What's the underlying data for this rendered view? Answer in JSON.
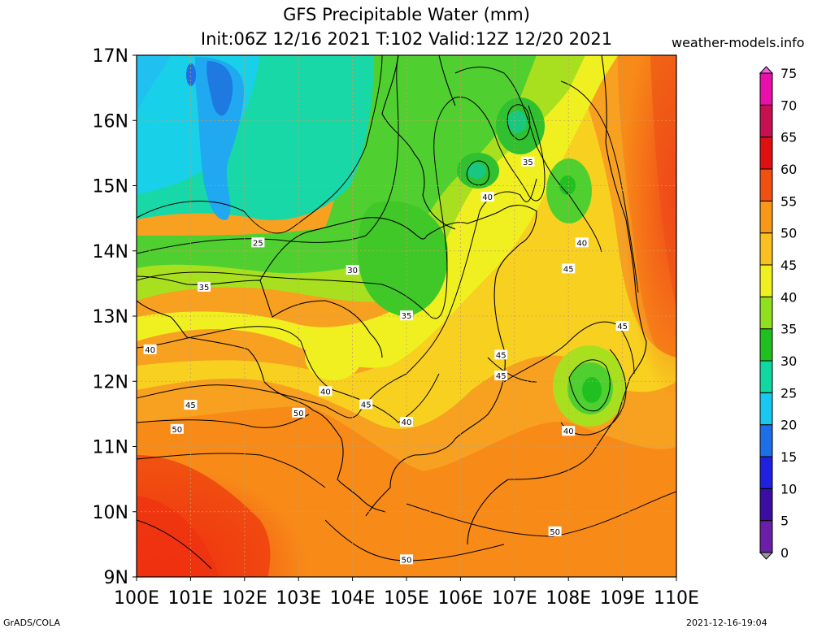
{
  "header": {
    "title_line1": "GFS Precipitable Water (mm)",
    "title_line2": "Init:06Z 12/16 2021 T:102 Valid:12Z 12/20 2021",
    "site": "weather-models.info"
  },
  "footer": {
    "left": "GrADS/COLA",
    "right": "2021-12-16-19:04"
  },
  "chart_data": {
    "type": "heatmap",
    "title": "GFS Precipitable Water (mm)",
    "x_ticks": [
      "100E",
      "101E",
      "102E",
      "103E",
      "104E",
      "105E",
      "106E",
      "107E",
      "108E",
      "109E",
      "110E"
    ],
    "y_ticks": [
      "17N",
      "16N",
      "15N",
      "14N",
      "13N",
      "12N",
      "11N",
      "10N",
      "9N"
    ],
    "xlim": [
      100,
      110
    ],
    "ylim": [
      9,
      17
    ],
    "grid": true,
    "colorbar": {
      "levels": [
        0,
        5,
        10,
        15,
        20,
        25,
        30,
        35,
        40,
        45,
        50,
        55,
        60,
        65,
        70,
        75
      ],
      "colors": [
        "#9a9a9a",
        "#6b1fa8",
        "#3a0ea0",
        "#2020e0",
        "#1e6ee8",
        "#19c8f0",
        "#10d8a0",
        "#20c020",
        "#90e020",
        "#f0f020",
        "#f8c020",
        "#f89818",
        "#f05010",
        "#e01010",
        "#c81050",
        "#e810a8",
        "#f060e0"
      ],
      "placement": "right"
    },
    "contour_labels": [
      {
        "value": "25",
        "lon": 102.25,
        "lat": 14.13
      },
      {
        "value": "30",
        "lon": 104.0,
        "lat": 13.71
      },
      {
        "value": "35",
        "lon": 101.25,
        "lat": 13.45
      },
      {
        "value": "35",
        "lon": 105.0,
        "lat": 13.01
      },
      {
        "value": "35",
        "lon": 107.25,
        "lat": 15.37
      },
      {
        "value": "40",
        "lon": 100.25,
        "lat": 12.49
      },
      {
        "value": "40",
        "lon": 103.5,
        "lat": 11.85
      },
      {
        "value": "40",
        "lon": 105.0,
        "lat": 11.38
      },
      {
        "value": "40",
        "lon": 106.5,
        "lat": 14.83
      },
      {
        "value": "40",
        "lon": 108.25,
        "lat": 14.13
      },
      {
        "value": "40",
        "lon": 108.0,
        "lat": 11.24
      },
      {
        "value": "45",
        "lon": 101.0,
        "lat": 11.64
      },
      {
        "value": "45",
        "lon": 104.25,
        "lat": 11.65
      },
      {
        "value": "45",
        "lon": 106.75,
        "lat": 12.41
      },
      {
        "value": "45",
        "lon": 106.75,
        "lat": 12.09
      },
      {
        "value": "45",
        "lon": 108.0,
        "lat": 13.73
      },
      {
        "value": "45",
        "lon": 109.0,
        "lat": 12.85
      },
      {
        "value": "50",
        "lon": 100.75,
        "lat": 11.27
      },
      {
        "value": "50",
        "lon": 103.0,
        "lat": 11.52
      },
      {
        "value": "50",
        "lon": 107.75,
        "lat": 9.7
      },
      {
        "value": "50",
        "lon": 105.0,
        "lat": 9.27
      }
    ]
  }
}
